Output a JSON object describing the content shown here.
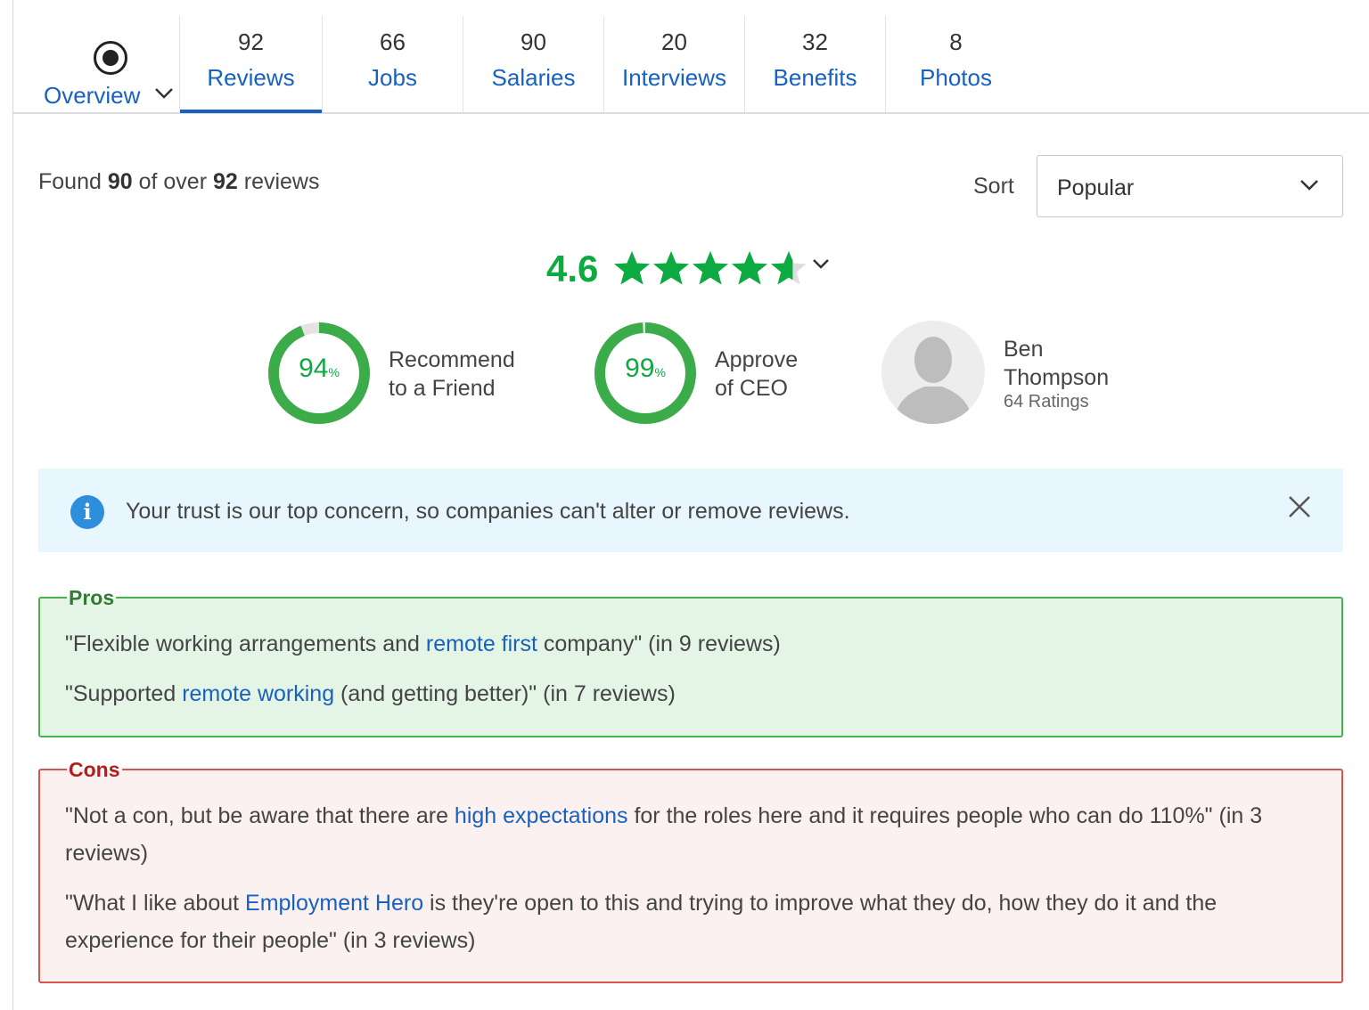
{
  "tabs": {
    "overview": {
      "label": "Overview"
    },
    "items": [
      {
        "count": "92",
        "label": "Reviews"
      },
      {
        "count": "66",
        "label": "Jobs"
      },
      {
        "count": "90",
        "label": "Salaries"
      },
      {
        "count": "20",
        "label": "Interviews"
      },
      {
        "count": "32",
        "label": "Benefits"
      },
      {
        "count": "8",
        "label": "Photos"
      }
    ],
    "active": "Reviews"
  },
  "summary": {
    "prefix": "Found ",
    "found": "90",
    "middle": " of over ",
    "total": "92",
    "suffix": " reviews"
  },
  "sort": {
    "label": "Sort",
    "value": "Popular"
  },
  "rating": {
    "value": "4.6",
    "stars": 4.6,
    "color": "#0caa41"
  },
  "stats": [
    {
      "percent": "94",
      "percent_value": 94,
      "unit": "%",
      "line1": "Recommend",
      "line2": "to a Friend"
    },
    {
      "percent": "99",
      "percent_value": 99,
      "unit": "%",
      "line1": "Approve",
      "line2": "of CEO"
    }
  ],
  "ceo": {
    "first": "Ben",
    "last": "Thompson",
    "ratings": "64 Ratings"
  },
  "notice": {
    "text": "Your trust is our top concern, so companies can't alter or remove reviews."
  },
  "pros": {
    "title": "Pros",
    "items": [
      {
        "before": "\"Flexible working arrangements and ",
        "link": "remote first",
        "after": " company\" (in 9 reviews)"
      },
      {
        "before": "\"Supported ",
        "link": "remote working",
        "after": " (and getting better)\" (in 7 reviews)"
      }
    ]
  },
  "cons": {
    "title": "Cons",
    "items": [
      {
        "before": "\"Not a con, but be aware that there are ",
        "link": "high expectations",
        "after": " for the roles here and it requires people who can do 110%\" (in 3",
        "after2": "reviews)"
      },
      {
        "before": "\"What I like about ",
        "link": "Employment Hero",
        "after": " is they're open to this and trying to improve what they do, how they do it and the",
        "after2": "experience for their people\" (in 3 reviews)"
      }
    ]
  },
  "colors": {
    "link": "#1861bf",
    "green": "#0caa41",
    "pros_border": "#4caf50",
    "cons_border": "#d9534f",
    "notice_bg": "#e8f6fe"
  }
}
